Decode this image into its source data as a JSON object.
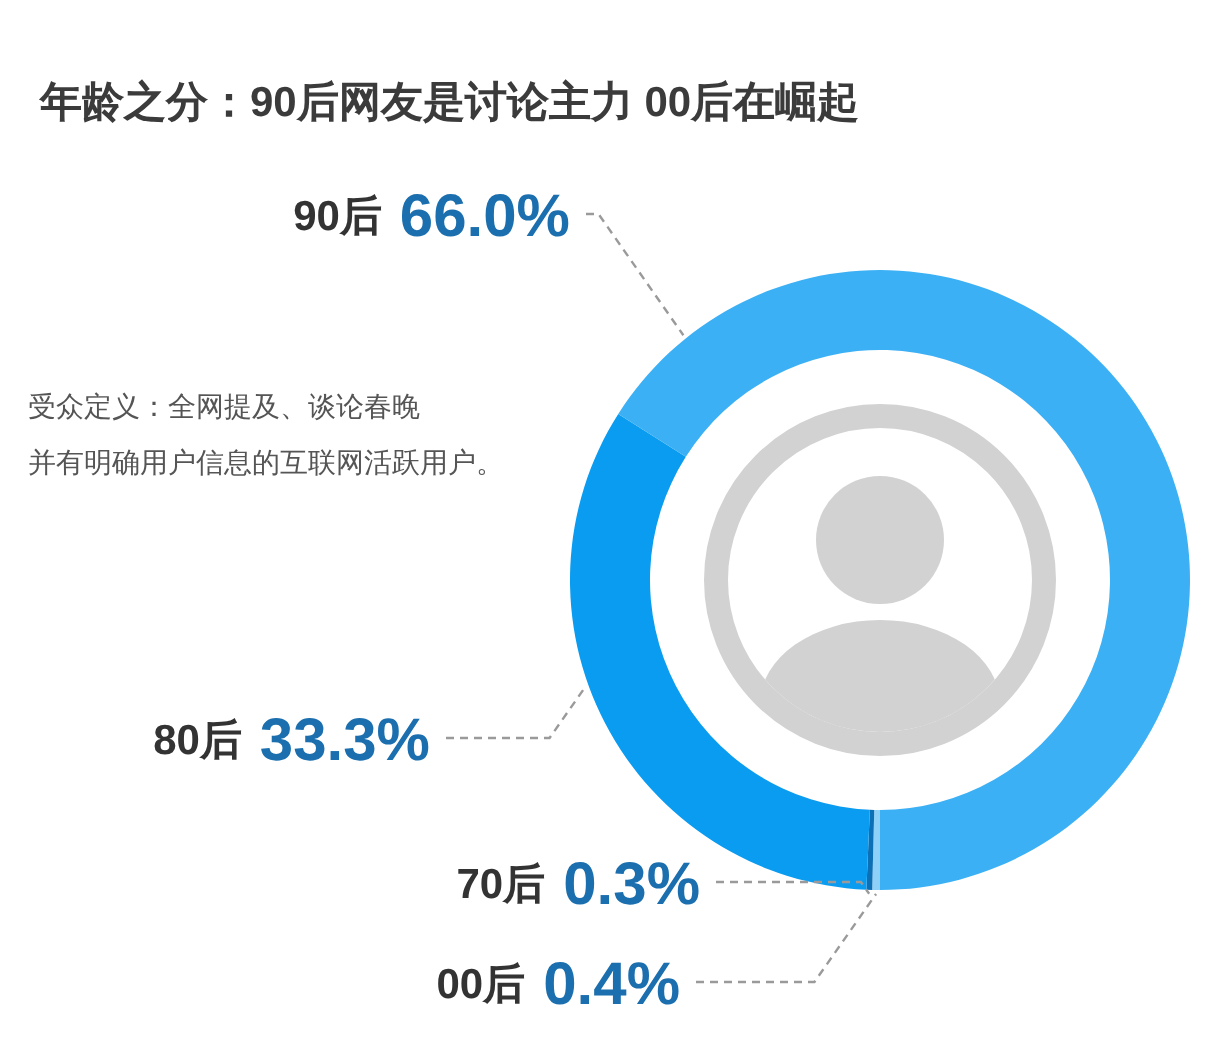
{
  "chart_data": {
    "type": "donut",
    "title": "年龄之分：90后网友是讨论主力 00后在崛起",
    "categories": [
      "90后",
      "80后",
      "70后",
      "00后"
    ],
    "values": [
      66.0,
      33.3,
      0.3,
      0.4
    ],
    "colors": [
      "#3cb0f5",
      "#0a9cf0",
      "#0b70b5",
      "#8dd0f8"
    ],
    "value_labels": [
      "66.0%",
      "33.3%",
      "0.3%",
      "0.4%"
    ],
    "annotations": [
      "受众定义：全网提及、谈论春晚",
      "并有明确用户信息的互联网活跃用户。"
    ]
  }
}
